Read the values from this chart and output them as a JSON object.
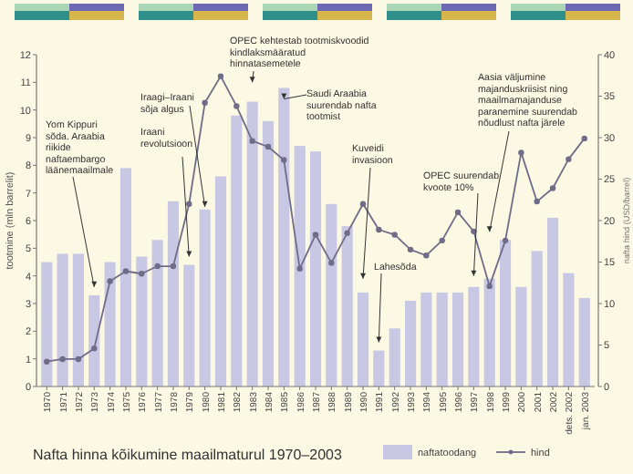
{
  "chart_data": {
    "type": "bar",
    "title": "Nafta hinna kõikumine maailmaturul 1970–2003",
    "ylabel": "tootmine (mln barrelit)",
    "y2label": "nafta hind (USD/barrel)",
    "categories": [
      "1970",
      "1971",
      "1972",
      "1973",
      "1974",
      "1975",
      "1976",
      "1977",
      "1978",
      "1979",
      "1980",
      "1981",
      "1982",
      "1983",
      "1984",
      "1985",
      "1986",
      "1987",
      "1988",
      "1989",
      "1990",
      "1991",
      "1992",
      "1993",
      "1994",
      "1995",
      "1996",
      "1997",
      "1998",
      "1999",
      "2000",
      "2001",
      "2002",
      "dets. 2002",
      "jan. 2003"
    ],
    "series": [
      {
        "name": "naftatoodang",
        "color": "#c8c8e4",
        "values": [
          4.5,
          4.8,
          4.8,
          3.3,
          4.5,
          7.9,
          4.7,
          5.3,
          6.7,
          4.4,
          6.4,
          7.6,
          9.8,
          10.3,
          9.6,
          10.8,
          8.7,
          8.5,
          6.6,
          5.8,
          3.4,
          1.3,
          2.1,
          3.1,
          3.4,
          3.4,
          3.4,
          3.6,
          3.9,
          5.3,
          3.6,
          4.9,
          6.1,
          4.1,
          3.2
        ]
      },
      {
        "name": "hind",
        "type": "line",
        "axis": "y2",
        "color": "#706c88",
        "values": [
          3.0,
          3.3,
          3.3,
          4.6,
          12.7,
          13.9,
          13.6,
          14.5,
          14.5,
          22,
          34.2,
          37.4,
          33.8,
          29.6,
          28.9,
          27.3,
          14.2,
          18.3,
          14.9,
          18.5,
          22,
          18.9,
          18.3,
          16.5,
          15.8,
          17.6,
          21,
          18.7,
          12.1,
          17.6,
          28.2,
          22.3,
          23.9,
          27.4,
          29.9
        ]
      }
    ],
    "ylim": [
      0,
      12
    ],
    "yticks": [
      0,
      1,
      2,
      3,
      4,
      5,
      6,
      7,
      8,
      9,
      10,
      11,
      12
    ],
    "y2lim": [
      0,
      40
    ],
    "y2ticks": [
      0,
      5,
      10,
      15,
      20,
      25,
      30,
      35,
      40
    ],
    "grid": false,
    "legend": "bottom right",
    "marker": "circle",
    "line_style": "solid",
    "annotations": [
      {
        "text": "Yom Kippuri sõda. Araabia riikide naftaembargo läänemaailmale",
        "x": "1973",
        "y": 3.6
      },
      {
        "text": "Iraani revolutsioon",
        "x": "1979",
        "y": 4.7
      },
      {
        "text": "Iraagi–Iraani sõja algus",
        "x": "1980",
        "y": 6.5
      },
      {
        "text": "OPEC kehtestab tootmiskvoodid kindlaksmääratud hinnatasemetele",
        "x": "1983",
        "y": 11
      },
      {
        "text": "Saudi Araabia suurendab nafta tootmist",
        "x": "1985",
        "y": 10.4
      },
      {
        "text": "Kuveidi invasioon",
        "x": "1990",
        "y": 3.9
      },
      {
        "text": "Lahesõda",
        "x": "1991",
        "y": 1.6
      },
      {
        "text": "OPEC suurendab kvoote 10%",
        "x": "1997",
        "y": 4.0
      },
      {
        "text": "Aasia väljumine majanduskriisist ning maailmamajanduse paranemine suurendab nõudlust nafta järele",
        "x": "1998",
        "y": 5.6
      }
    ]
  }
}
